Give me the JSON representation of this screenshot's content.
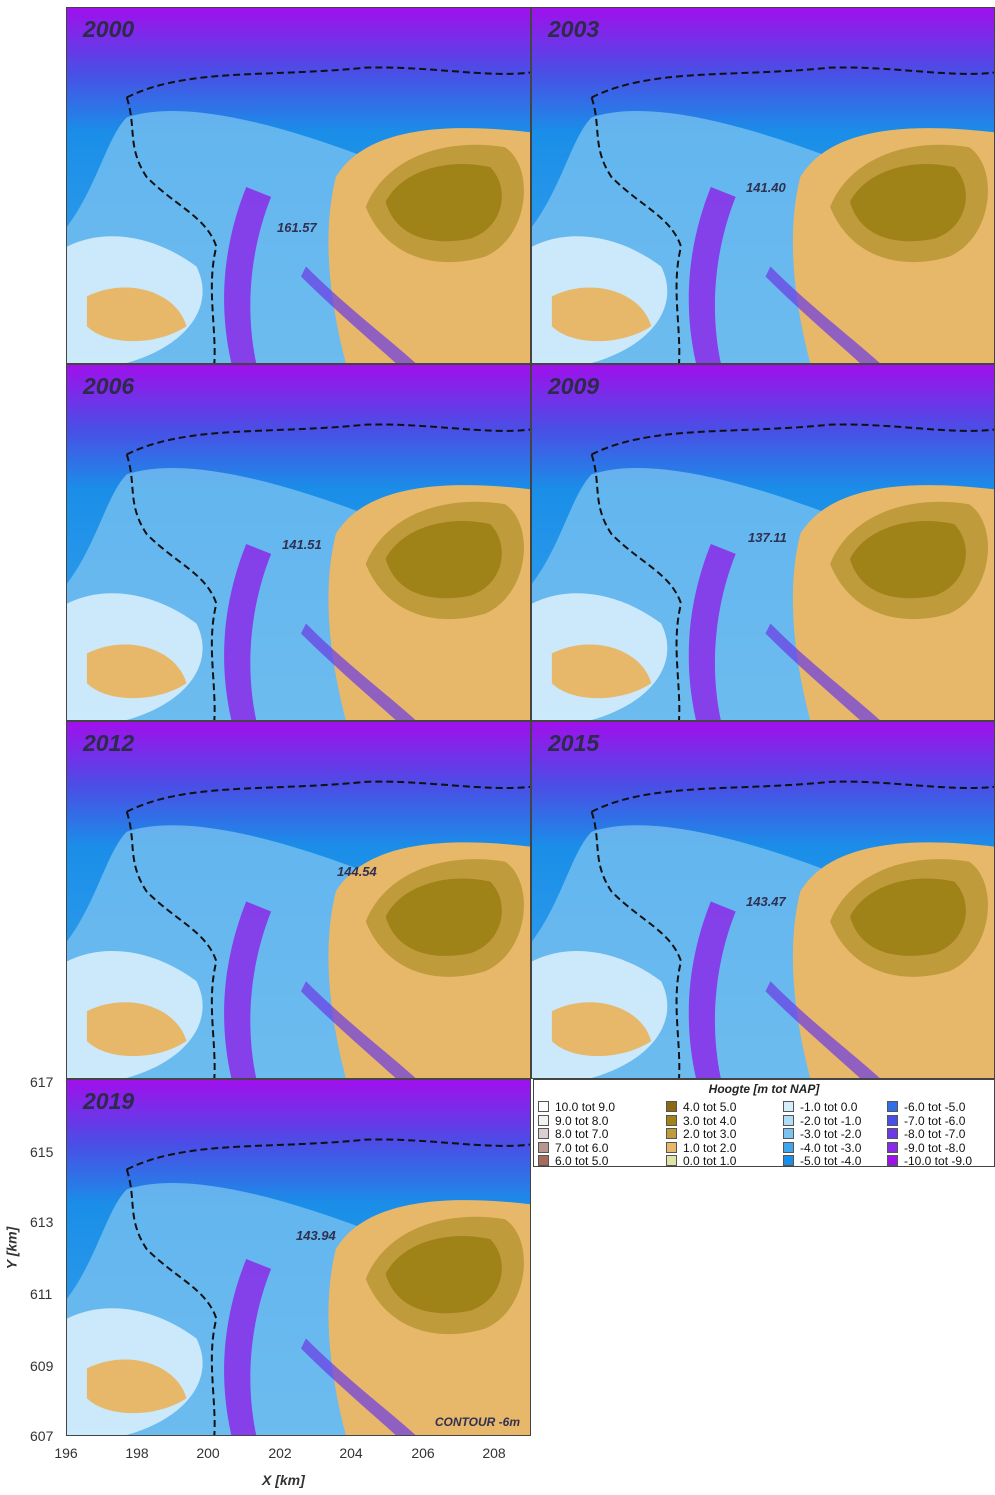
{
  "panels": [
    {
      "year": "2000",
      "value": "161.57"
    },
    {
      "year": "2003",
      "value": "141.40"
    },
    {
      "year": "2006",
      "value": "141.51"
    },
    {
      "year": "2009",
      "value": "137.11"
    },
    {
      "year": "2012",
      "value": "144.54"
    },
    {
      "year": "2015",
      "value": "143.47"
    },
    {
      "year": "2019",
      "value": "143.94"
    }
  ],
  "contour_note": "CONTOUR -6m",
  "axes": {
    "x_label": "X [km]",
    "y_label": "Y [km]",
    "x_ticks": [
      "196",
      "198",
      "200",
      "202",
      "204",
      "206",
      "208"
    ],
    "y_ticks": [
      "617",
      "615",
      "613",
      "611",
      "609",
      "607"
    ]
  },
  "legend": {
    "title": "Hoogte [m tot NAP]",
    "items": [
      {
        "label": "10.0 tot 9.0",
        "color": "#ffffff"
      },
      {
        "label": "9.0 tot 8.0",
        "color": "#f2f2f2"
      },
      {
        "label": "8.0 tot 7.0",
        "color": "#d9d1cf"
      },
      {
        "label": "7.0 tot 6.0",
        "color": "#b8958e"
      },
      {
        "label": "6.0 tot 5.0",
        "color": "#a96a5e"
      },
      {
        "label": "4.0 tot 5.0",
        "color": "#8b6a12"
      },
      {
        "label": "3.0 tot 4.0",
        "color": "#a08318"
      },
      {
        "label": "2.0 tot 3.0",
        "color": "#c09b3c"
      },
      {
        "label": "1.0 tot 2.0",
        "color": "#e8b86a"
      },
      {
        "label": "0.0 tot 1.0",
        "color": "#dfe3a6"
      },
      {
        "label": "-1.0 tot  0.0",
        "color": "#d6eefb"
      },
      {
        "label": "-2.0 tot -1.0",
        "color": "#b0dcf6"
      },
      {
        "label": "-3.0 tot -2.0",
        "color": "#7cc3f0"
      },
      {
        "label": "-4.0 tot -3.0",
        "color": "#3fa6ec"
      },
      {
        "label": "-5.0 tot -4.0",
        "color": "#1a8ee8"
      },
      {
        "label": "-6.0 tot -5.0",
        "color": "#2e6ee6"
      },
      {
        "label": "-7.0 tot -6.0",
        "color": "#4a4ee6"
      },
      {
        "label": "-8.0 tot -7.0",
        "color": "#6b3ae6"
      },
      {
        "label": "-9.0 tot -8.0",
        "color": "#8a2ae8"
      },
      {
        "label": "-10.0 tot -9.0",
        "color": "#a010ec"
      }
    ]
  }
}
